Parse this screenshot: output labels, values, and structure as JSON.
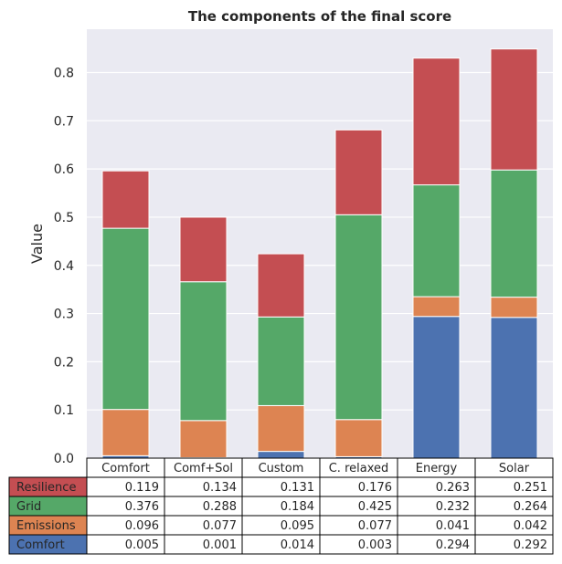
{
  "chart_data": {
    "type": "bar",
    "stacked": true,
    "title": "The components of the final score",
    "xlabel": "",
    "ylabel": "Value",
    "ylim": [
      0,
      0.89
    ],
    "yticks": [
      "0.0",
      "0.1",
      "0.2",
      "0.3",
      "0.4",
      "0.5",
      "0.6",
      "0.7",
      "0.8"
    ],
    "grid": true,
    "categories": [
      "Comfort",
      "Comf+Sol",
      "Custom",
      "C. relaxed",
      "Energy",
      "Solar"
    ],
    "series": [
      {
        "name": "Comfort",
        "color": "#4c72b0",
        "values": [
          0.005,
          0.001,
          0.014,
          0.003,
          0.294,
          0.292
        ],
        "labels": [
          "0.005",
          "0.001",
          "0.014",
          "0.003",
          "0.294",
          "0.292"
        ]
      },
      {
        "name": "Emissions",
        "color": "#dd8452",
        "values": [
          0.096,
          0.077,
          0.095,
          0.077,
          0.041,
          0.042
        ],
        "labels": [
          "0.096",
          "0.077",
          "0.095",
          "0.077",
          "0.041",
          "0.042"
        ]
      },
      {
        "name": "Grid",
        "color": "#55a868",
        "values": [
          0.376,
          0.288,
          0.184,
          0.425,
          0.232,
          0.264
        ],
        "labels": [
          "0.376",
          "0.288",
          "0.184",
          "0.425",
          "0.232",
          "0.264"
        ]
      },
      {
        "name": "Resilience",
        "color": "#c44e52",
        "values": [
          0.119,
          0.134,
          0.131,
          0.176,
          0.263,
          0.251
        ],
        "labels": [
          "0.119",
          "0.134",
          "0.131",
          "0.176",
          "0.263",
          "0.251"
        ]
      }
    ],
    "table_row_order": [
      "Resilience",
      "Grid",
      "Emissions",
      "Comfort"
    ]
  },
  "colors": {
    "plot_background": "#eaeaf2",
    "grid": "#ffffff"
  }
}
